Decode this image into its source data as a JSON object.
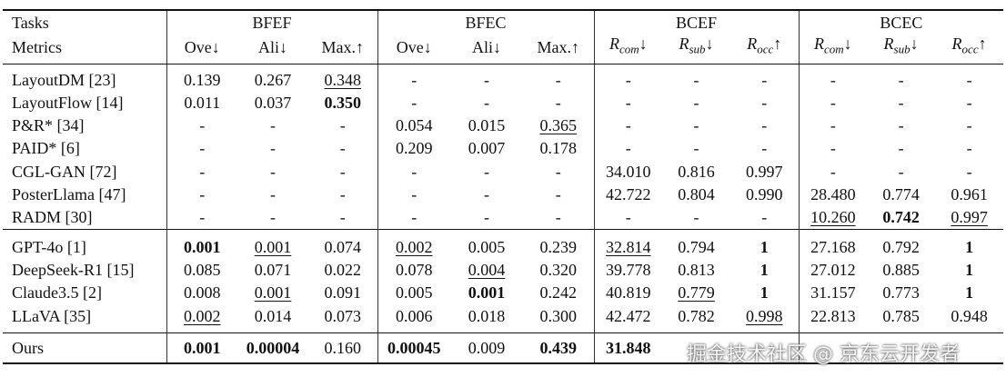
{
  "table": {
    "header": {
      "tasks_label": "Tasks",
      "metrics_label": "Metrics",
      "tasks": [
        "BFEF",
        "BFEC",
        "BCEF",
        "BCEC"
      ],
      "metrics": [
        {
          "main": "Ove↓"
        },
        {
          "main": "Ali↓"
        },
        {
          "main": "Max.↑"
        },
        {
          "main": "Ove↓"
        },
        {
          "main": "Ali↓"
        },
        {
          "main": "Max.↑"
        },
        {
          "main": "R",
          "sub": "com",
          "suffix": "↓"
        },
        {
          "main": "R",
          "sub": "sub",
          "suffix": "↓"
        },
        {
          "main": "R",
          "sub": "occ",
          "suffix": "↑"
        },
        {
          "main": "R",
          "sub": "com",
          "suffix": "↓"
        },
        {
          "main": "R",
          "sub": "sub",
          "suffix": "↓"
        },
        {
          "main": "R",
          "sub": "occ",
          "suffix": "↑"
        }
      ]
    },
    "groups": [
      {
        "rows": [
          {
            "label": "LayoutDM [23]",
            "cells": [
              "0.139",
              "0.267",
              "0.348",
              "-",
              "-",
              "-",
              "-",
              "-",
              "-",
              "-",
              "-",
              "-"
            ],
            "bold": [],
            "underline": [
              2
            ]
          },
          {
            "label": "LayoutFlow [14]",
            "cells": [
              "0.011",
              "0.037",
              "0.350",
              "-",
              "-",
              "-",
              "-",
              "-",
              "-",
              "-",
              "-",
              "-"
            ],
            "bold": [
              2
            ],
            "underline": []
          },
          {
            "label": "P&R* [34]",
            "cells": [
              "-",
              "-",
              "-",
              "0.054",
              "0.015",
              "0.365",
              "-",
              "-",
              "-",
              "-",
              "-",
              "-"
            ],
            "bold": [],
            "underline": [
              5
            ]
          },
          {
            "label": "PAID* [6]",
            "cells": [
              "-",
              "-",
              "-",
              "0.209",
              "0.007",
              "0.178",
              "-",
              "-",
              "-",
              "-",
              "-",
              "-"
            ],
            "bold": [],
            "underline": []
          },
          {
            "label": "CGL-GAN [72]",
            "cells": [
              "-",
              "-",
              "-",
              "-",
              "-",
              "-",
              "34.010",
              "0.816",
              "0.997",
              "-",
              "-",
              "-"
            ],
            "bold": [],
            "underline": []
          },
          {
            "label": "PosterLlama [47]",
            "cells": [
              "-",
              "-",
              "-",
              "-",
              "-",
              "-",
              "42.722",
              "0.804",
              "0.990",
              "28.480",
              "0.774",
              "0.961"
            ],
            "bold": [],
            "underline": []
          },
          {
            "label": "RADM [30]",
            "cells": [
              "-",
              "-",
              "-",
              "-",
              "-",
              "-",
              "-",
              "-",
              "-",
              "10.260",
              "0.742",
              "0.997"
            ],
            "bold": [
              10
            ],
            "underline": [
              9,
              11
            ]
          }
        ]
      },
      {
        "rows": [
          {
            "label": "GPT-4o [1]",
            "cells": [
              "0.001",
              "0.001",
              "0.074",
              "0.002",
              "0.005",
              "0.239",
              "32.814",
              "0.794",
              "1",
              "27.168",
              "0.792",
              "1"
            ],
            "bold": [
              0,
              8,
              11
            ],
            "underline": [
              1,
              3,
              6
            ]
          },
          {
            "label": "DeepSeek-R1 [15]",
            "cells": [
              "0.085",
              "0.071",
              "0.022",
              "0.078",
              "0.004",
              "0.320",
              "39.778",
              "0.813",
              "1",
              "27.012",
              "0.885",
              "1"
            ],
            "bold": [
              8,
              11
            ],
            "underline": [
              4
            ]
          },
          {
            "label": "Claude3.5 [2]",
            "cells": [
              "0.008",
              "0.001",
              "0.091",
              "0.005",
              "0.001",
              "0.242",
              "40.819",
              "0.779",
              "1",
              "31.157",
              "0.773",
              "1"
            ],
            "bold": [
              4,
              8,
              11
            ],
            "underline": [
              1,
              7
            ]
          },
          {
            "label": "LLaVA [35]",
            "cells": [
              "0.002",
              "0.014",
              "0.073",
              "0.006",
              "0.018",
              "0.300",
              "42.472",
              "0.782",
              "0.998",
              "22.813",
              "0.785",
              "0.948"
            ],
            "bold": [],
            "underline": [
              0,
              8
            ]
          }
        ]
      },
      {
        "rows": [
          {
            "label": "Ours",
            "cells": [
              "0.001",
              "0.00004",
              "0.160",
              "0.00045",
              "0.009",
              "0.439",
              "31.848",
              null,
              null,
              null,
              null,
              null
            ],
            "bold": [
              0,
              1,
              3,
              5,
              6
            ],
            "underline": []
          }
        ]
      }
    ],
    "watermark": "掘金技术社区 @ 京东云开发者"
  }
}
